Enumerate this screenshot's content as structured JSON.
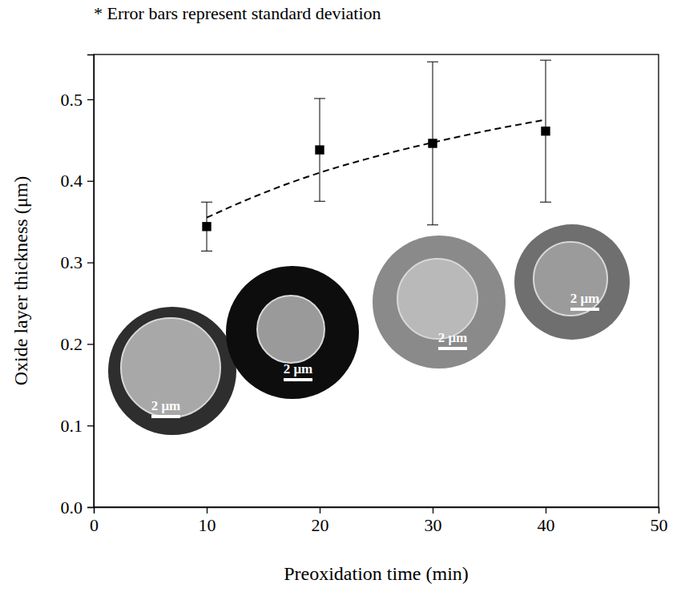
{
  "chart_data": {
    "type": "scatter",
    "annotation": "* Error bars represent standard deviation",
    "x_label": "Preoxidation time (min)",
    "y_label": "Oxide layer thickness (μm)",
    "x": [
      10,
      20,
      30,
      40
    ],
    "values": [
      0.344,
      0.438,
      0.446,
      0.461
    ],
    "errors": [
      0.03,
      0.063,
      0.1,
      0.087
    ],
    "color": "#000000",
    "marker": "square",
    "fit": {
      "x": [
        10,
        15,
        20,
        25,
        30,
        35,
        40
      ],
      "values": [
        0.355,
        0.385,
        0.41,
        0.43,
        0.447,
        0.462,
        0.475
      ],
      "line_style": "dashed"
    },
    "inset_labels": [
      "2 μm",
      "2 μm",
      "2 μm",
      "2 μm"
    ],
    "xlim": [
      0,
      50
    ],
    "xticks": [
      0,
      10,
      20,
      30,
      40,
      50
    ],
    "ylim": [
      0,
      0.555
    ],
    "yticks": [
      {
        "value": 0,
        "label": "0.0"
      },
      0.1,
      0.2,
      0.3,
      0.4,
      0.5
    ],
    "grid": false
  }
}
